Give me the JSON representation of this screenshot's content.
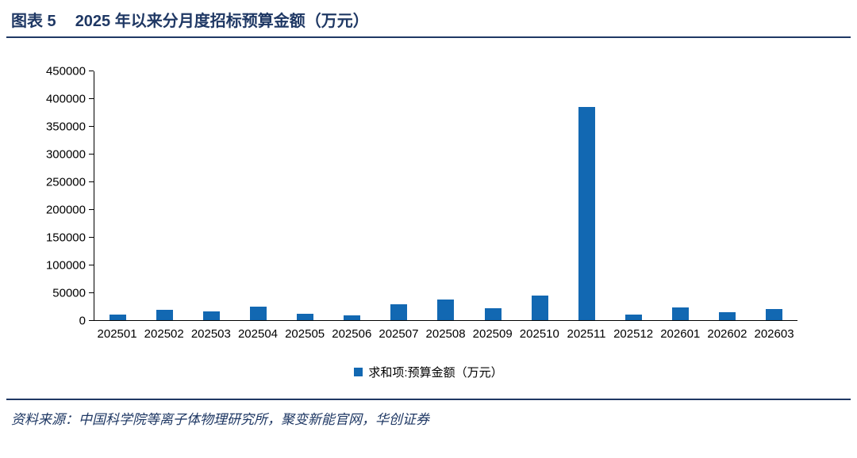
{
  "header": {
    "figure_label": "图表 5",
    "title": "2025 年以来分月度招标预算金额（万元）"
  },
  "footer": {
    "source": "资料来源：中国科学院等离子体物理研究所，聚变新能官网，华创证券"
  },
  "colors": {
    "navy": "#1f3864",
    "bar": "#1268b2",
    "axis": "#000000"
  },
  "chart_data": {
    "type": "bar",
    "title": "2025 年以来分月度招标预算金额（万元）",
    "categories": [
      "202501",
      "202502",
      "202503",
      "202504",
      "202505",
      "202506",
      "202507",
      "202508",
      "202509",
      "202510",
      "202511",
      "202512",
      "202601",
      "202602",
      "202603"
    ],
    "values": [
      10000,
      18000,
      16000,
      24000,
      12000,
      9000,
      29000,
      37000,
      21000,
      45000,
      385000,
      10000,
      23000,
      14000,
      20000
    ],
    "series_name": "求和项:预算金额（万元）",
    "legend": [
      "求和项:预算金额（万元）"
    ],
    "legend_position": "bottom",
    "xlabel": "",
    "ylabel": "",
    "ylim": [
      0,
      450000
    ],
    "ytick_step": 50000,
    "yticks": [
      0,
      50000,
      100000,
      150000,
      200000,
      250000,
      300000,
      350000,
      400000,
      450000
    ],
    "grid": false,
    "bar_color": "#1268b2"
  }
}
